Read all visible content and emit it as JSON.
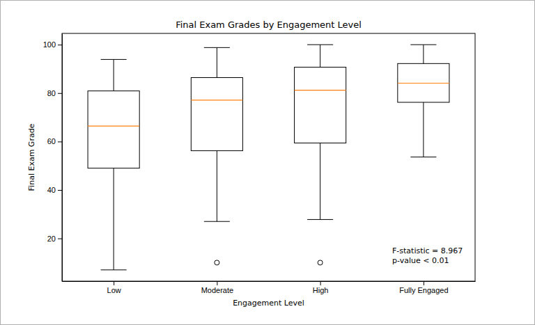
{
  "chart_data": {
    "type": "box",
    "title": "Final Exam Grades by Engagement Level",
    "x_label": "Engagement Level",
    "y_label": "Final Exam Grade",
    "categories": [
      "Low",
      "Moderate",
      "High",
      "Fully Engaged"
    ],
    "boxes": [
      {
        "whisker_low": 7,
        "q1": 49,
        "median": 66.4,
        "q3": 80.9,
        "whisker_high": 93.9,
        "outliers": []
      },
      {
        "whisker_low": 27,
        "q1": 56.2,
        "median": 77.1,
        "q3": 86.4,
        "whisker_high": 98.8,
        "outliers": [
          10
        ]
      },
      {
        "whisker_low": 27.8,
        "q1": 59.4,
        "median": 81.2,
        "q3": 90.7,
        "whisker_high": 100,
        "outliers": [
          10
        ]
      },
      {
        "whisker_low": 53.6,
        "q1": 76.2,
        "median": 84.1,
        "q3": 92.2,
        "whisker_high": 100,
        "outliers": []
      }
    ],
    "color": "#ff7f0e",
    "ylim": [
      2.35,
      104.65
    ],
    "yticks": [
      20,
      40,
      60,
      80,
      100
    ],
    "grid": false,
    "annotations": [
      "F-statistic = 8.967",
      "p-value < 0.01"
    ]
  }
}
